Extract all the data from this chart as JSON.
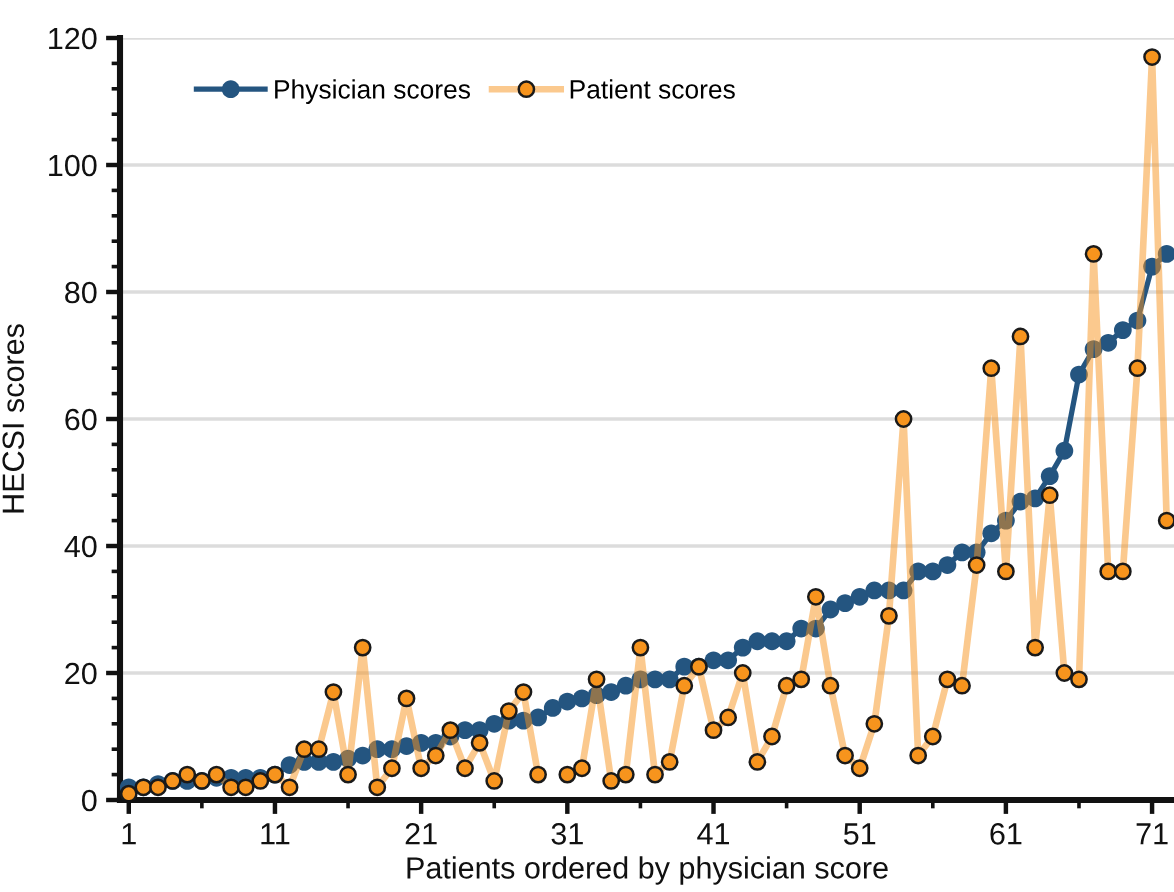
{
  "chart_data": {
    "type": "line",
    "xlabel": "Patients ordered by physician score",
    "ylabel": "HECSI scores",
    "x": [
      1,
      2,
      3,
      4,
      5,
      6,
      7,
      8,
      9,
      10,
      11,
      12,
      13,
      14,
      15,
      16,
      17,
      18,
      19,
      20,
      21,
      22,
      23,
      24,
      25,
      26,
      27,
      28,
      29,
      30,
      31,
      32,
      33,
      34,
      35,
      36,
      37,
      38,
      39,
      40,
      41,
      42,
      43,
      44,
      45,
      46,
      47,
      48,
      49,
      50,
      51,
      52,
      53,
      54,
      55,
      56,
      57,
      58,
      59,
      60,
      61,
      62,
      63,
      64,
      65,
      66,
      67,
      68,
      69,
      70,
      71,
      72
    ],
    "series": [
      {
        "name": "Physician scores",
        "color": "#245580",
        "values": [
          2,
          2,
          2.5,
          3,
          3,
          3,
          3.5,
          3.5,
          3.5,
          3.5,
          4,
          5.5,
          6,
          6,
          6,
          6.5,
          7,
          8,
          8,
          8.5,
          9,
          9,
          10,
          11,
          11,
          12,
          12.5,
          12.5,
          13,
          14.5,
          15.5,
          16,
          16.5,
          17,
          18,
          19,
          19,
          19,
          21,
          21,
          22,
          22,
          24,
          25,
          25,
          25,
          27,
          27,
          30,
          31,
          32,
          33,
          33,
          33,
          36,
          36,
          37,
          39,
          39,
          42,
          44,
          47,
          47.5,
          51,
          55,
          67,
          71,
          72,
          74,
          75.5,
          84,
          86
        ]
      },
      {
        "name": "Patient scores",
        "color": "#f7941d",
        "values": [
          1,
          2,
          2,
          3,
          4,
          3,
          4,
          2,
          2,
          3,
          4,
          2,
          8,
          8,
          17,
          4,
          24,
          2,
          5,
          16,
          5,
          7,
          11,
          5,
          9,
          3,
          14,
          17,
          4,
          null,
          4,
          5,
          19,
          3,
          4,
          24,
          4,
          6,
          18,
          21,
          11,
          13,
          20,
          6,
          10,
          18,
          19,
          32,
          18,
          7,
          5,
          12,
          29,
          60,
          7,
          10,
          19,
          18,
          37,
          68,
          36,
          73,
          24,
          48,
          20,
          19,
          86,
          36,
          36,
          68,
          117,
          44
        ]
      }
    ],
    "xlim": [
      0.4,
      72.5
    ],
    "xticks": [
      1,
      {
        "value": 6,
        "label": null
      },
      11,
      {
        "value": 16,
        "label": null
      },
      21,
      {
        "value": 26,
        "label": null
      },
      31,
      {
        "value": 36,
        "label": null
      },
      41,
      {
        "value": 46,
        "label": null
      },
      51,
      {
        "value": 56,
        "label": null
      },
      61,
      {
        "value": 66,
        "label": null
      },
      71
    ],
    "ylim": [
      0,
      120
    ],
    "yticks": [
      0,
      {
        "value": 4,
        "label": null
      },
      {
        "value": 8,
        "label": null
      },
      {
        "value": 12,
        "label": null
      },
      {
        "value": 16,
        "label": null
      },
      20,
      {
        "value": 24,
        "label": null
      },
      {
        "value": 28,
        "label": null
      },
      {
        "value": 32,
        "label": null
      },
      {
        "value": 36,
        "label": null
      },
      40,
      {
        "value": 44,
        "label": null
      },
      {
        "value": 48,
        "label": null
      },
      {
        "value": 52,
        "label": null
      },
      {
        "value": 56,
        "label": null
      },
      60,
      {
        "value": 64,
        "label": null
      },
      {
        "value": 68,
        "label": null
      },
      {
        "value": 72,
        "label": null
      },
      {
        "value": 76,
        "label": null
      },
      80,
      {
        "value": 84,
        "label": null
      },
      {
        "value": 88,
        "label": null
      },
      {
        "value": 92,
        "label": null
      },
      {
        "value": 96,
        "label": null
      },
      100,
      {
        "value": 104,
        "label": null
      },
      {
        "value": 108,
        "label": null
      },
      {
        "value": 112,
        "label": null
      },
      {
        "value": 116,
        "label": null
      },
      120
    ],
    "grid": "y",
    "legend": "top left",
    "marker": "circle",
    "line_style": "solid"
  }
}
